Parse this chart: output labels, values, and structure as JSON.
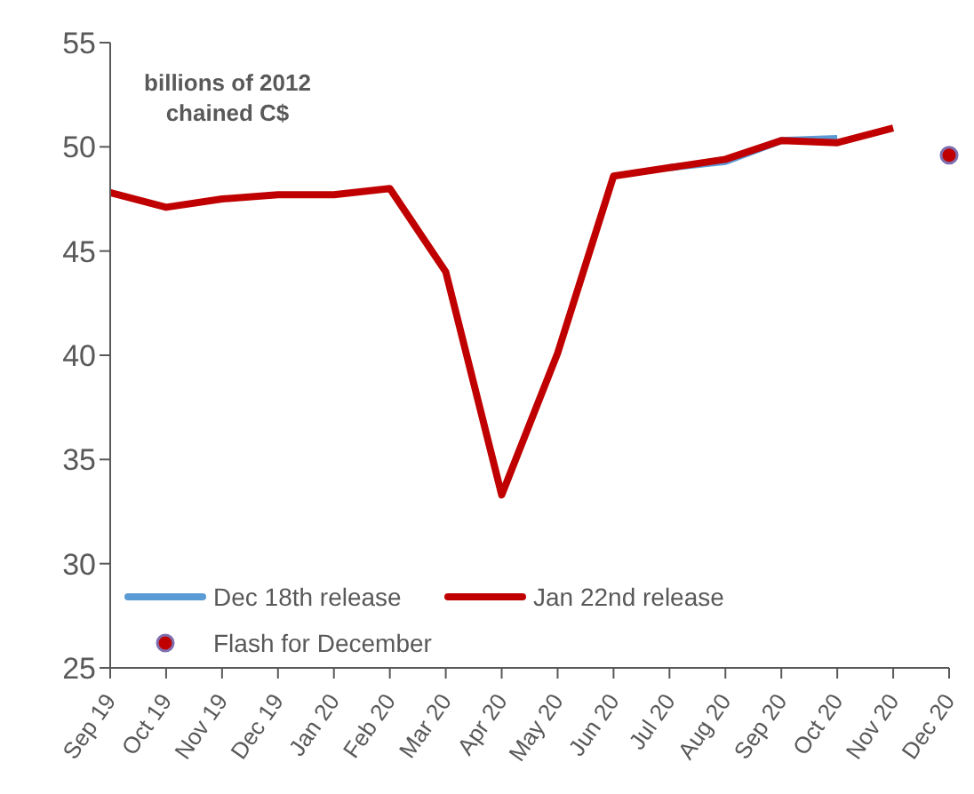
{
  "chart_data": {
    "type": "line",
    "ylabel": "billions of 2012 chained C$",
    "categories": [
      "Sep 19",
      "Oct 19",
      "Nov 19",
      "Dec 19",
      "Jan 20",
      "Feb 20",
      "Mar 20",
      "Apr 20",
      "May 20",
      "Jun 20",
      "Jul 20",
      "Aug 20",
      "Sep 20",
      "Oct 20",
      "Nov 20",
      "Dec 20"
    ],
    "series": [
      {
        "name": "Dec 18th release",
        "color": "#5b9bd5",
        "values": [
          null,
          null,
          null,
          null,
          null,
          null,
          null,
          null,
          null,
          null,
          49.0,
          49.3,
          50.3,
          50.4,
          null,
          null
        ]
      },
      {
        "name": "Jan 22nd release",
        "color": "#c00000",
        "values": [
          47.8,
          47.1,
          47.5,
          47.7,
          47.7,
          48.0,
          44.0,
          33.3,
          40.1,
          48.6,
          49.0,
          49.4,
          50.3,
          50.2,
          50.9,
          null
        ]
      },
      {
        "name": "Flash for December",
        "type": "scatter",
        "marker": "circle",
        "color": "#c00000",
        "values": [
          null,
          null,
          null,
          null,
          null,
          null,
          null,
          null,
          null,
          null,
          null,
          null,
          null,
          null,
          null,
          49.6
        ]
      }
    ],
    "ylim": [
      25,
      55
    ],
    "yticks": [
      25,
      30,
      35,
      40,
      45,
      50,
      55
    ],
    "grid": false,
    "legend": "bottom left",
    "line_style": "solid"
  }
}
